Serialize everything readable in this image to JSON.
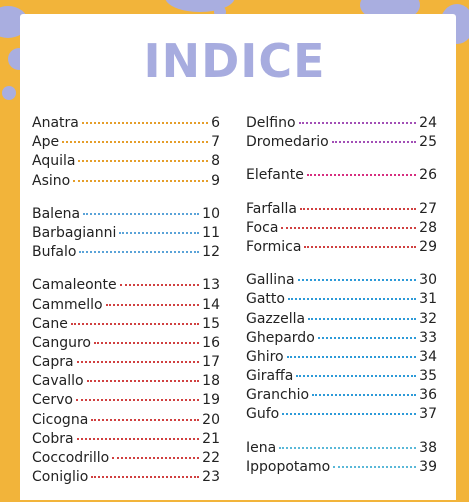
{
  "title": "INDICE",
  "colors": {
    "background": "#f2b43a",
    "splat": "#a9aee0",
    "title": "#a7acdf"
  },
  "left_column": [
    {
      "color": "#e59e2a",
      "entries": [
        {
          "name": "Anatra",
          "page": "6"
        },
        {
          "name": "Ape",
          "page": "7"
        },
        {
          "name": "Aquila",
          "page": "8"
        },
        {
          "name": "Asino",
          "page": "9"
        }
      ]
    },
    {
      "color": "#5aa3d8",
      "entries": [
        {
          "name": "Balena",
          "page": "10"
        },
        {
          "name": "Barbagianni",
          "page": "11"
        },
        {
          "name": "Bufalo",
          "page": "12"
        }
      ]
    },
    {
      "color": "#d04040",
      "entries": [
        {
          "name": "Camaleonte",
          "page": "13"
        },
        {
          "name": "Cammello",
          "page": "14"
        },
        {
          "name": "Cane",
          "page": "15"
        },
        {
          "name": "Canguro",
          "page": "16"
        },
        {
          "name": "Capra",
          "page": "17"
        },
        {
          "name": "Cavallo",
          "page": "18"
        },
        {
          "name": "Cervo",
          "page": "19"
        },
        {
          "name": "Cicogna",
          "page": "20"
        },
        {
          "name": "Cobra",
          "page": "21"
        },
        {
          "name": "Coccodrillo",
          "page": "22"
        },
        {
          "name": "Coniglio",
          "page": "23"
        }
      ]
    }
  ],
  "right_column": [
    {
      "color": "#a24fb6",
      "entries": [
        {
          "name": "Delfino",
          "page": "24"
        },
        {
          "name": "Dromedario",
          "page": "25"
        }
      ]
    },
    {
      "color": "#d62d7f",
      "entries": [
        {
          "name": "Elefante",
          "page": "26"
        }
      ]
    },
    {
      "color": "#d04040",
      "entries": [
        {
          "name": "Farfalla",
          "page": "27"
        },
        {
          "name": "Foca",
          "page": "28"
        },
        {
          "name": "Formica",
          "page": "29"
        }
      ]
    },
    {
      "color": "#2d9ad8",
      "entries": [
        {
          "name": "Gallina",
          "page": "30"
        },
        {
          "name": "Gatto",
          "page": "31"
        },
        {
          "name": "Gazzella",
          "page": "32"
        },
        {
          "name": "Ghepardo",
          "page": "33"
        },
        {
          "name": "Ghiro",
          "page": "34"
        },
        {
          "name": "Giraffa",
          "page": "35"
        },
        {
          "name": "Granchio",
          "page": "36"
        },
        {
          "name": "Gufo",
          "page": "37"
        }
      ]
    },
    {
      "color": "#5ab8d8",
      "entries": [
        {
          "name": "Iena",
          "page": "38"
        },
        {
          "name": "Ippopotamo",
          "page": "39"
        }
      ]
    }
  ]
}
